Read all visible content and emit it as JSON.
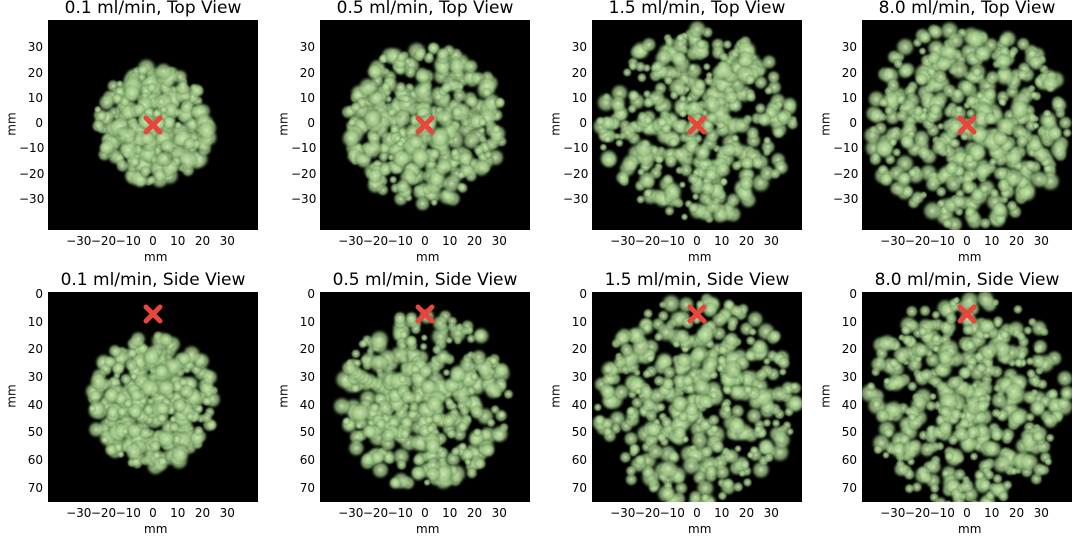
{
  "colors": {
    "background": "#000000",
    "blob": "#cfe8b0",
    "marker": "#e8453c"
  },
  "axis_label_x": "mm",
  "axis_label_y": "mm",
  "top_row": [
    {
      "title": "0.1 ml/min, Top View",
      "spread": 0.55
    },
    {
      "title": "0.5 ml/min, Top View",
      "spread": 0.75
    },
    {
      "title": "1.5 ml/min, Top View",
      "spread": 0.92
    },
    {
      "title": "8.0 ml/min, Top View",
      "spread": 0.96
    }
  ],
  "bottom_row": [
    {
      "title": "0.1 ml/min, Side View",
      "spread": 0.6
    },
    {
      "title": "0.5 ml/min, Side View",
      "spread": 0.8
    },
    {
      "title": "1.5 ml/min, Side View",
      "spread": 0.95
    },
    {
      "title": "8.0 ml/min, Side View",
      "spread": 0.97
    }
  ],
  "top_xticks": [
    "−30",
    "−20",
    "−10",
    "0",
    "10",
    "20",
    "30"
  ],
  "top_yticks": [
    "30",
    "20",
    "10",
    "0",
    "−10",
    "−20",
    "−30"
  ],
  "bottom_xticks": [
    "−30",
    "−20",
    "−10",
    "0",
    "10",
    "20",
    "30"
  ],
  "bottom_yticks": [
    "0",
    "10",
    "20",
    "30",
    "40",
    "50",
    "60",
    "70"
  ]
}
